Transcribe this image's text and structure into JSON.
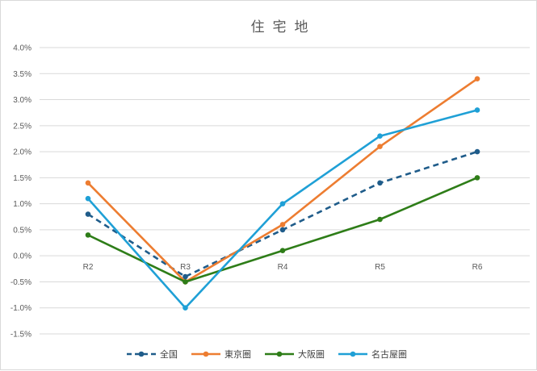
{
  "chart_data": {
    "type": "line",
    "title": "住宅地",
    "categories": [
      "R2",
      "R3",
      "R4",
      "R5",
      "R6"
    ],
    "y_tick_labels": [
      "4.0%",
      "3.5%",
      "3.0%",
      "2.5%",
      "2.0%",
      "1.5%",
      "1.0%",
      "0.5%",
      "0.0%",
      "-0.5%",
      "-1.0%",
      "-1.5%"
    ],
    "ylim": [
      -1.5,
      4.0
    ],
    "y_step": 0.5,
    "grid": true,
    "legend_position": "bottom",
    "series": [
      {
        "name": "全国",
        "values": [
          0.8,
          -0.4,
          0.5,
          1.4,
          2.0
        ],
        "color": "#1f5c8a",
        "dashed": true
      },
      {
        "name": "東京圏",
        "values": [
          1.4,
          -0.5,
          0.6,
          2.1,
          3.4
        ],
        "color": "#ed7d31",
        "dashed": false
      },
      {
        "name": "大阪圏",
        "values": [
          0.4,
          -0.5,
          0.1,
          0.7,
          1.5
        ],
        "color": "#2e7d18",
        "dashed": false
      },
      {
        "name": "名古屋圏",
        "values": [
          1.1,
          -1.0,
          1.0,
          2.3,
          2.8
        ],
        "color": "#1fa0d6",
        "dashed": false
      }
    ]
  }
}
